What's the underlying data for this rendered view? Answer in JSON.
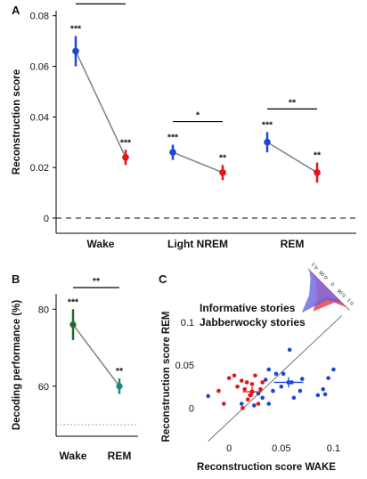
{
  "colors": {
    "blue": "#1f46d6",
    "red": "#e3141b",
    "green": "#1a6e2c",
    "teal": "#16897a",
    "gray": "#808080",
    "axis": "#000000",
    "inset_red": "#e8434b",
    "inset_blue": "#5a5ce0",
    "inset_purple": "#a06fd1"
  },
  "chart_data": [
    {
      "panel": "A",
      "type": "line",
      "ylabel": "Reconstruction score",
      "ylim": [
        -0.006,
        0.082
      ],
      "yticks": [
        "0",
        "0.02",
        "0.04",
        "0.06",
        "0.08"
      ],
      "ytick_values": [
        0,
        0.02,
        0.04,
        0.06,
        0.08
      ],
      "zero_line": "dashed",
      "categories": [
        "Wake",
        "Light NREM",
        "REM"
      ],
      "pairs": [
        {
          "category": "Wake",
          "blue": {
            "value": 0.066,
            "err": 0.006,
            "sig": "***"
          },
          "red": {
            "value": 0.024,
            "err": 0.003,
            "sig": "***"
          },
          "bracket_sig": "***"
        },
        {
          "category": "Light NREM",
          "blue": {
            "value": 0.026,
            "err": 0.003,
            "sig": "***"
          },
          "red": {
            "value": 0.018,
            "err": 0.003,
            "sig": "**"
          },
          "bracket_sig": "*"
        },
        {
          "category": "REM",
          "blue": {
            "value": 0.03,
            "err": 0.004,
            "sig": "***"
          },
          "red": {
            "value": 0.018,
            "err": 0.004,
            "sig": "**"
          },
          "bracket_sig": "**"
        }
      ]
    },
    {
      "panel": "B",
      "type": "line",
      "ylabel": "Decoding performance (%)",
      "ylim": [
        47,
        84
      ],
      "yticks": [
        "60",
        "80"
      ],
      "ytick_values": [
        60,
        80
      ],
      "chance_line": 50,
      "categories": [
        "Wake",
        "REM"
      ],
      "points": [
        {
          "category": "Wake",
          "value": 76,
          "err": 4,
          "sig": "***",
          "color": "green"
        },
        {
          "category": "REM",
          "value": 60,
          "err": 2,
          "sig": "**",
          "color": "teal"
        }
      ],
      "bracket_sig": "**"
    },
    {
      "panel": "C",
      "type": "scatter",
      "xlabel": "Reconstruction score WAKE",
      "ylabel": "Reconstruction score REM",
      "xlim": [
        -0.03,
        0.115
      ],
      "ylim": [
        -0.035,
        0.125
      ],
      "xticks": [
        "0",
        "0.05",
        "0.1"
      ],
      "xtick_values": [
        0,
        0.05,
        0.1
      ],
      "yticks": [
        "0",
        "0.05",
        "0.1"
      ],
      "ytick_values": [
        0,
        0.05,
        0.1
      ],
      "identity_line": true,
      "series": [
        {
          "name": "Informative stories",
          "color": "blue",
          "points": [
            [
              -0.02,
              0.014
            ],
            [
              0.012,
              0.005
            ],
            [
              0.024,
              0.003
            ],
            [
              0.028,
              0.017
            ],
            [
              0.032,
              0.012
            ],
            [
              0.035,
              0.033
            ],
            [
              0.038,
              0.045
            ],
            [
              0.042,
              0.02
            ],
            [
              0.045,
              0.04
            ],
            [
              0.05,
              0.025
            ],
            [
              0.052,
              0.04
            ],
            [
              0.058,
              0.068
            ],
            [
              0.06,
              0.03
            ],
            [
              0.062,
              0.012
            ],
            [
              0.068,
              0.02
            ],
            [
              0.07,
              0.034
            ],
            [
              0.085,
              0.015
            ],
            [
              0.09,
              0.022
            ],
            [
              0.092,
              0.016
            ],
            [
              0.095,
              0.035
            ],
            [
              0.1,
              0.045
            ],
            [
              0.038,
              0.005
            ]
          ],
          "mean": [
            0.057,
            0.03
          ],
          "xerr": 0.014,
          "yerr": 0.006
        },
        {
          "name": "Jabberwocky stories",
          "color": "red",
          "points": [
            [
              -0.01,
              0.02
            ],
            [
              -0.005,
              0.005
            ],
            [
              0.0,
              0.035
            ],
            [
              0.005,
              0.038
            ],
            [
              0.008,
              0.025
            ],
            [
              0.012,
              0.032
            ],
            [
              0.015,
              0.022
            ],
            [
              0.018,
              0.01
            ],
            [
              0.02,
              0.015
            ],
            [
              0.022,
              0.028
            ],
            [
              0.025,
              0.038
            ],
            [
              0.028,
              0.005
            ],
            [
              0.03,
              0.022
            ],
            [
              0.013,
              0.0
            ],
            [
              0.017,
              0.03
            ],
            [
              0.032,
              0.03
            ]
          ],
          "mean": [
            0.022,
            0.019
          ],
          "xerr": 0.009,
          "yerr": 0.006
        }
      ],
      "inset_tick_labels": [
        "0.1",
        "0.05",
        "0",
        "-0.05",
        "-0.1"
      ]
    }
  ],
  "labels": {
    "panel_a": "A",
    "panel_b": "B",
    "panel_c": "C"
  }
}
